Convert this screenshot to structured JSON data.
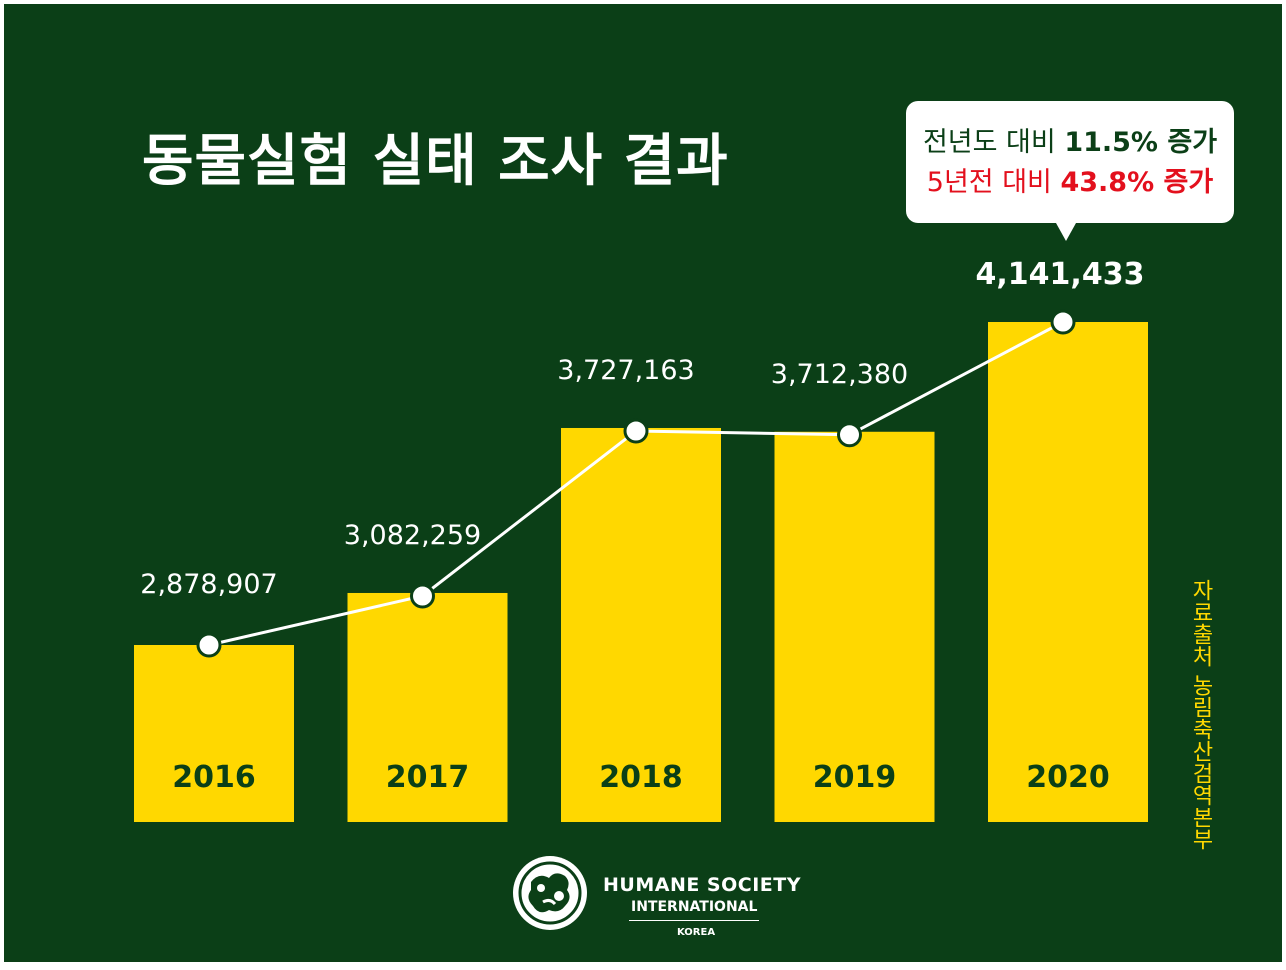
{
  "title": "동물실험 실태 조사 결과",
  "callout": {
    "line1_prefix": "전년도 대비 ",
    "line1_value": "11.5% 증가",
    "line2_prefix": "5년전 대비 ",
    "line2_value": "43.8% 증가"
  },
  "source": "자료출처  농림축산검역본부",
  "logo": {
    "name": "HUMANE SOCIETY",
    "sub": "INTERNATIONAL",
    "country": "KOREA"
  },
  "colors": {
    "background": "#0b3f17",
    "bar": "#ffd800",
    "line": "#ffffff",
    "highlight": "#e3101d"
  },
  "chart_data": {
    "type": "bar",
    "categories": [
      "2016",
      "2017",
      "2018",
      "2019",
      "2020"
    ],
    "values": [
      2878907,
      3082259,
      3727163,
      3712380,
      4141433
    ],
    "value_labels": [
      "2,878,907",
      "3,082,259",
      "3,727,163",
      "3,712,380",
      "4,141,433"
    ],
    "overlay": "line",
    "title": "동물실험 실태 조사 결과",
    "xlabel": "",
    "ylabel": "",
    "grid": false,
    "legend": "none"
  }
}
